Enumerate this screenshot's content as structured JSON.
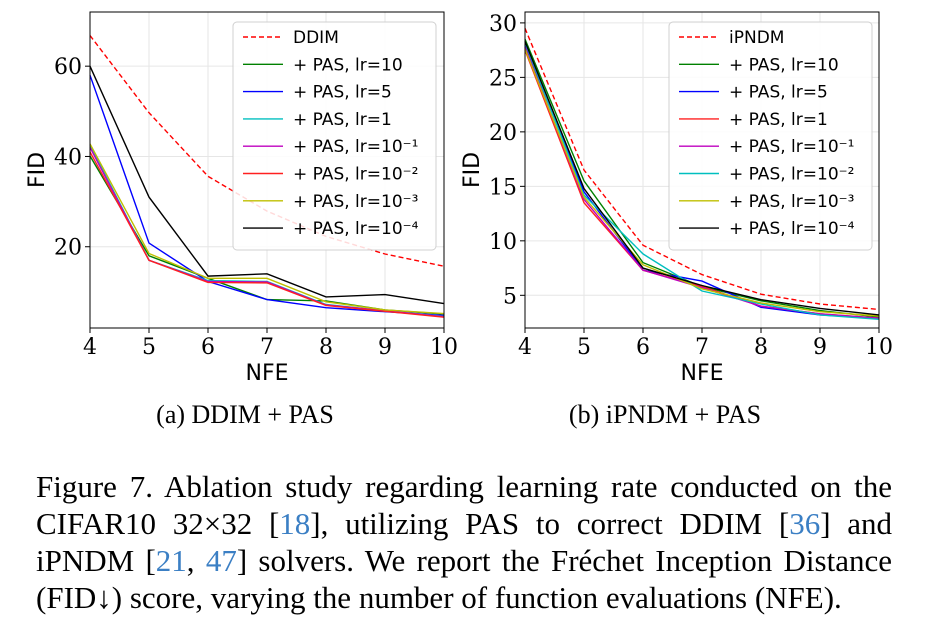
{
  "chart_data": [
    {
      "type": "line",
      "subcaption": "(a) DDIM + PAS",
      "xlabel": "NFE",
      "ylabel": "FID",
      "xlim": [
        4,
        10
      ],
      "ylim": [
        2,
        72
      ],
      "xticks": [
        "4",
        "5",
        "6",
        "7",
        "8",
        "9",
        "10"
      ],
      "yticks": [
        "20",
        "40",
        "60"
      ],
      "ytick_values": [
        20,
        40,
        60
      ],
      "grid": true,
      "legend_position": "top-right",
      "x": [
        4,
        5,
        6,
        7,
        8,
        9,
        10
      ],
      "series": [
        {
          "name": "DDIM",
          "color": "#ff0000",
          "dashed": true,
          "values": [
            66.8,
            49.7,
            35.6,
            27.9,
            22.3,
            18.4,
            15.7
          ]
        },
        {
          "name": "+ PAS, lr=10",
          "color": "#008000",
          "values": [
            40.1,
            18.0,
            13.0,
            8.3,
            8.0,
            6.0,
            5.1
          ]
        },
        {
          "name": "+ PAS, lr=5",
          "color": "#0000ff",
          "values": [
            58.0,
            20.8,
            12.3,
            8.3,
            6.5,
            5.6,
            4.8
          ]
        },
        {
          "name": "+ PAS, lr=1",
          "color": "#00bfbf",
          "values": [
            42.5,
            17.0,
            12.5,
            12.3,
            7.2,
            5.8,
            4.6
          ]
        },
        {
          "name": "+ PAS, lr=10⁻¹",
          "color": "#bf00bf",
          "values": [
            42.0,
            17.0,
            12.3,
            12.2,
            7.1,
            5.8,
            4.5
          ]
        },
        {
          "name": "+ PAS, lr=10⁻²",
          "color": "#ff2020",
          "values": [
            41.0,
            17.0,
            12.1,
            12.0,
            7.0,
            5.7,
            4.4
          ]
        },
        {
          "name": "+ PAS, lr=10⁻³",
          "color": "#bfbf00",
          "values": [
            42.8,
            18.5,
            13.0,
            13.0,
            7.8,
            6.0,
            5.2
          ]
        },
        {
          "name": "+ PAS, lr=10⁻⁴",
          "color": "#000000",
          "values": [
            60.0,
            31.0,
            13.5,
            14.0,
            8.9,
            9.4,
            7.4
          ]
        }
      ]
    },
    {
      "type": "line",
      "subcaption": "(b) iPNDM + PAS",
      "xlabel": "NFE",
      "ylabel": "FID",
      "xlim": [
        4,
        10
      ],
      "ylim": [
        2.0,
        31.0
      ],
      "xticks": [
        "4",
        "5",
        "6",
        "7",
        "8",
        "9",
        "10"
      ],
      "yticks": [
        "5",
        "10",
        "15",
        "20",
        "25",
        "30"
      ],
      "ytick_values": [
        5,
        10,
        15,
        20,
        25,
        30
      ],
      "grid": true,
      "legend_position": "top-right",
      "x": [
        4,
        5,
        6,
        7,
        8,
        9,
        10
      ],
      "series": [
        {
          "name": "iPNDM",
          "color": "#ff0000",
          "dashed": true,
          "values": [
            29.5,
            16.5,
            9.6,
            6.9,
            5.1,
            4.2,
            3.7
          ]
        },
        {
          "name": "+ PAS, lr=10",
          "color": "#008000",
          "values": [
            28.5,
            15.5,
            8.0,
            5.8,
            4.5,
            3.6,
            3.0
          ]
        },
        {
          "name": "+ PAS, lr=5",
          "color": "#0000ff",
          "values": [
            28.0,
            14.5,
            7.3,
            6.3,
            3.9,
            3.2,
            2.9
          ]
        },
        {
          "name": "+ PAS, lr=1",
          "color": "#ff2020",
          "values": [
            27.5,
            13.5,
            7.3,
            5.8,
            4.0,
            3.3,
            2.9
          ]
        },
        {
          "name": "+ PAS, lr=10⁻¹",
          "color": "#bf00bf",
          "values": [
            27.8,
            13.8,
            7.3,
            5.7,
            4.0,
            3.3,
            2.9
          ]
        },
        {
          "name": "+ PAS, lr=10⁻²",
          "color": "#00bfbf",
          "values": [
            28.2,
            14.2,
            8.8,
            5.4,
            4.2,
            3.2,
            2.8
          ]
        },
        {
          "name": "+ PAS, lr=10⁻³",
          "color": "#bfbf00",
          "values": [
            27.6,
            14.0,
            7.8,
            5.6,
            4.3,
            3.5,
            3.1
          ]
        },
        {
          "name": "+ PAS, lr=10⁻⁴",
          "color": "#000000",
          "values": [
            28.3,
            14.8,
            7.5,
            5.9,
            4.6,
            3.8,
            3.2
          ]
        }
      ]
    }
  ],
  "caption": {
    "parts": [
      {
        "text": "Figure 7. Ablation study regarding learning rate conducted on the CIFAR10 32×32 [",
        "cite": false
      },
      {
        "text": "18",
        "cite": true
      },
      {
        "text": "], utilizing PAS to correct DDIM [",
        "cite": false
      },
      {
        "text": "36",
        "cite": true
      },
      {
        "text": "] and iPNDM [",
        "cite": false
      },
      {
        "text": "21",
        "cite": true
      },
      {
        "text": ", ",
        "cite": false
      },
      {
        "text": "47",
        "cite": true
      },
      {
        "text": "] solvers. We report the Fréchet Inception Distance (FID↓) score, varying the number of function evaluations (NFE).",
        "cite": false
      }
    ]
  }
}
